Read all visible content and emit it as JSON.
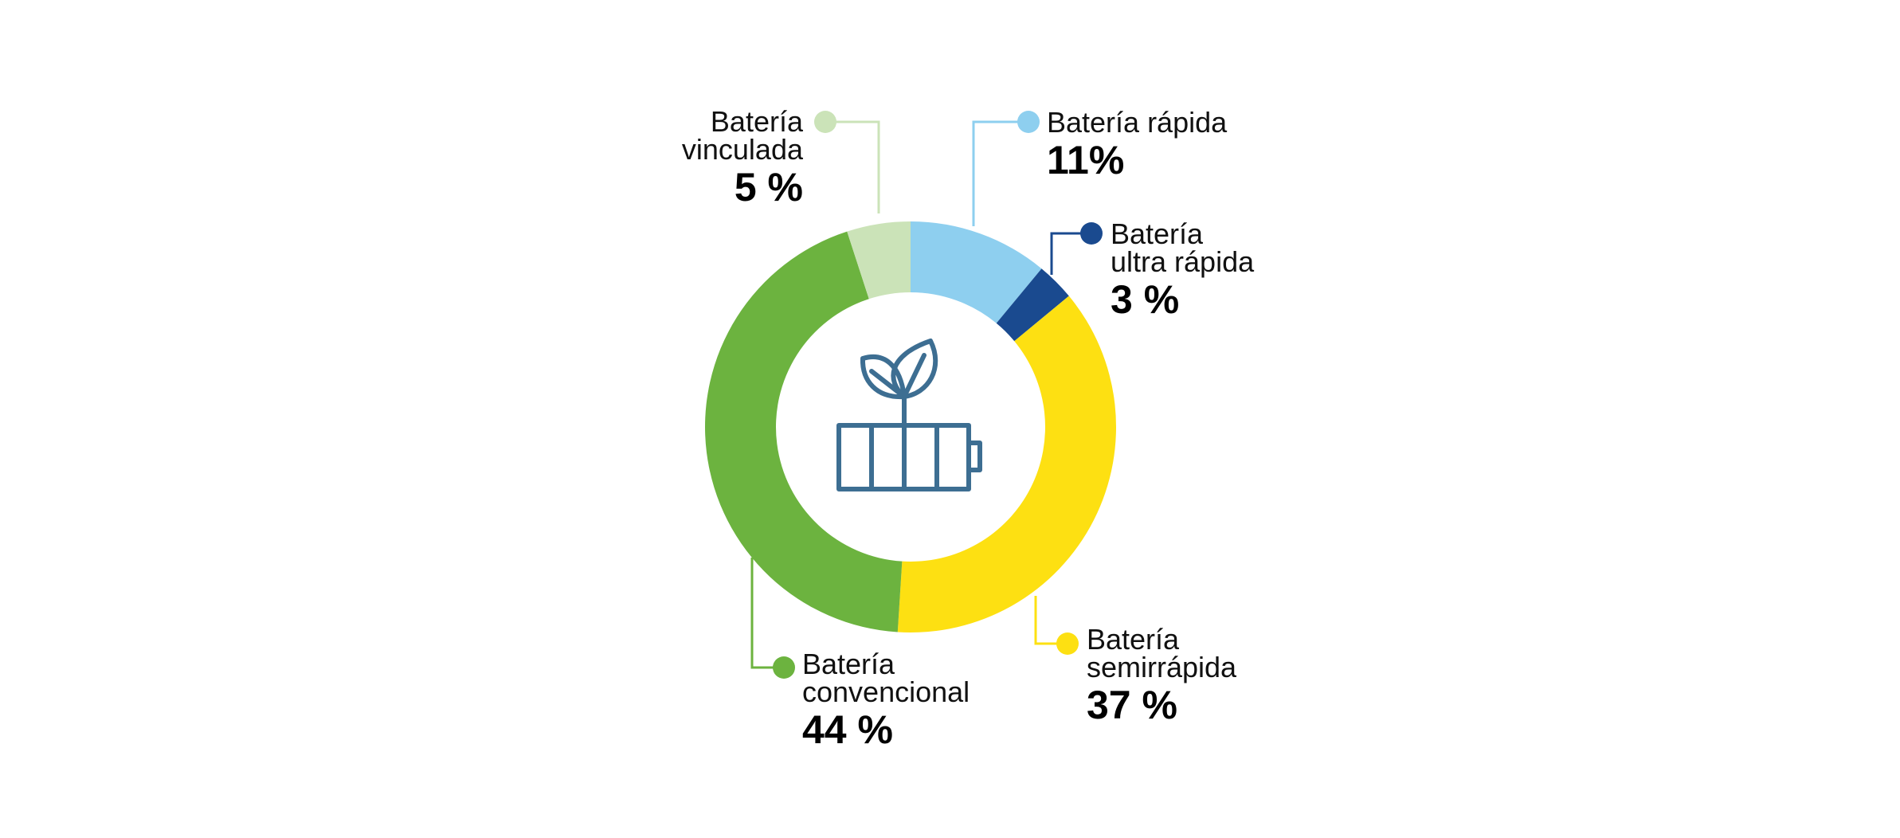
{
  "chart_data": {
    "type": "pie",
    "donut": true,
    "center_icon": "battery-with-leaves-icon",
    "slices": [
      {
        "name": "Batería rápida",
        "label_lines": [
          "Batería rápida"
        ],
        "value": 11,
        "value_label": "11%",
        "color": "#8ecfef"
      },
      {
        "name": "Batería ultra rápida",
        "label_lines": [
          "Batería",
          "ultra rápida"
        ],
        "value": 3,
        "value_label": "3 %",
        "color": "#1a4a8f"
      },
      {
        "name": "Batería semirrápida",
        "label_lines": [
          "Batería",
          "semirrápida"
        ],
        "value": 37,
        "value_label": "37 %",
        "color": "#fde012"
      },
      {
        "name": "Batería convencional",
        "label_lines": [
          "Batería",
          "convencional"
        ],
        "value": 44,
        "value_label": "44 %",
        "color": "#6cb33f"
      },
      {
        "name": "Batería vinculada",
        "label_lines": [
          "Batería",
          "vinculada"
        ],
        "value": 5,
        "value_label": "5 %",
        "color": "#cbe3b8"
      }
    ],
    "icon_color": "#3d6e92"
  }
}
